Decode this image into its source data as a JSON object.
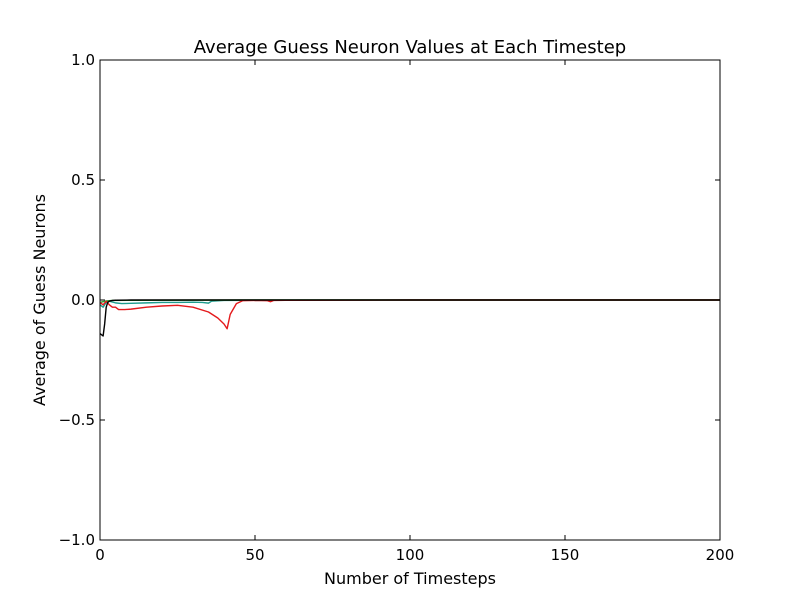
{
  "chart_data": {
    "type": "line",
    "title": "Average Guess Neuron Values at Each Timestep",
    "xlabel": "Number of Timesteps",
    "ylabel": "Average of Guess Neurons",
    "xlim": [
      0,
      200
    ],
    "ylim": [
      -1.0,
      1.0
    ],
    "xticks": [
      0,
      50,
      100,
      150,
      200
    ],
    "xtick_labels": [
      "0",
      "50",
      "100",
      "150",
      "200"
    ],
    "yticks": [
      1.0,
      0.5,
      0.0,
      -0.5,
      -1.0
    ],
    "ytick_labels": [
      "1.0",
      "0.5",
      "0.0",
      "−0.5",
      "−1.0"
    ],
    "grid": false,
    "legend": "none",
    "series": [
      {
        "color": "#1f9e8f",
        "x": [
          0,
          1,
          2,
          3,
          5,
          7,
          10,
          15,
          20,
          25,
          30,
          33,
          35,
          36,
          40,
          60,
          100,
          150,
          200
        ],
        "y": [
          -0.02,
          -0.03,
          -0.01,
          -0.005,
          -0.012,
          -0.015,
          -0.014,
          -0.012,
          -0.01,
          -0.01,
          -0.009,
          -0.01,
          -0.013,
          -0.005,
          -0.002,
          -0.001,
          0,
          0,
          0
        ]
      },
      {
        "color": "#2ca02c",
        "x": [
          0,
          2,
          4,
          10,
          50,
          100,
          150,
          200
        ],
        "y": [
          -0.01,
          -0.004,
          -0.002,
          -0.001,
          0,
          0,
          0,
          0
        ]
      },
      {
        "color": "#e41a1c",
        "x": [
          0,
          1,
          2,
          3,
          4,
          5,
          6,
          8,
          10,
          15,
          20,
          25,
          30,
          35,
          38,
          40,
          41,
          42,
          44,
          46,
          50,
          54,
          55,
          56,
          60,
          100,
          150,
          200
        ],
        "y": [
          -0.01,
          -0.02,
          -0.005,
          -0.02,
          -0.03,
          -0.03,
          -0.04,
          -0.04,
          -0.038,
          -0.03,
          -0.025,
          -0.022,
          -0.03,
          -0.05,
          -0.075,
          -0.1,
          -0.12,
          -0.06,
          -0.015,
          -0.003,
          -0.002,
          -0.003,
          -0.007,
          -0.002,
          -0.001,
          0,
          0,
          0
        ]
      },
      {
        "color": "#000000",
        "x": [
          0,
          1,
          1.5,
          2,
          2.5,
          3,
          4,
          5,
          10,
          50,
          100,
          150,
          200
        ],
        "y": [
          -0.14,
          -0.15,
          -0.1,
          -0.03,
          -0.01,
          -0.005,
          -0.002,
          -0.001,
          0,
          0,
          0,
          0,
          0
        ]
      }
    ]
  }
}
